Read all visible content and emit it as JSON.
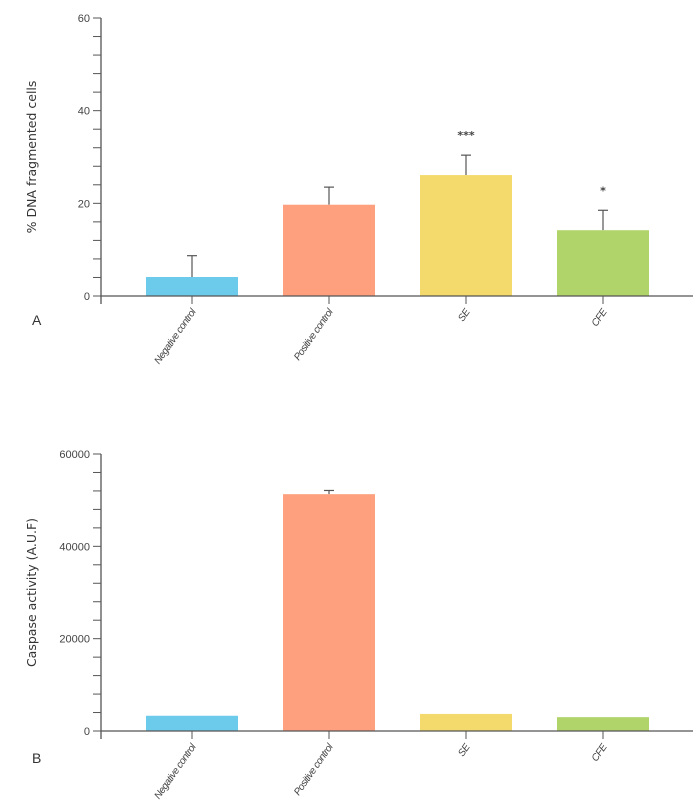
{
  "colors": {
    "Negative control": "#6ccbeb",
    "Positive control": "#fea07e",
    "SE": "#f4da6c",
    "CFE": "#b1d46a",
    "axis": "#555555"
  },
  "chart_data": [
    {
      "type": "bar",
      "panel_label": "A",
      "title": "",
      "xlabel": "",
      "ylabel": "% DNA fragmented cells",
      "categories": [
        "Negative control",
        "Positive control",
        "SE",
        "CFE"
      ],
      "values": [
        4.1,
        19.7,
        26.1,
        14.2
      ],
      "error_upper": [
        8.7,
        23.5,
        30.4,
        18.5
      ],
      "annotations": [
        "",
        "",
        "***",
        "*"
      ],
      "ylim": [
        0,
        60
      ],
      "yticks": [
        0,
        20,
        40,
        60
      ],
      "minor_tick_step": 4,
      "grid": false
    },
    {
      "type": "bar",
      "panel_label": "B",
      "title": "",
      "xlabel": "",
      "ylabel": "Caspase activity (A.U.F)",
      "categories": [
        "Negative control",
        "Positive control",
        "SE",
        "CFE"
      ],
      "values": [
        3300,
        51300,
        3700,
        3000
      ],
      "error_upper": [
        null,
        52100,
        null,
        null
      ],
      "annotations": [
        "",
        "",
        "",
        ""
      ],
      "ylim": [
        0,
        60000
      ],
      "yticks": [
        0,
        20000,
        40000,
        60000
      ],
      "minor_tick_step": 4000,
      "grid": false
    }
  ]
}
